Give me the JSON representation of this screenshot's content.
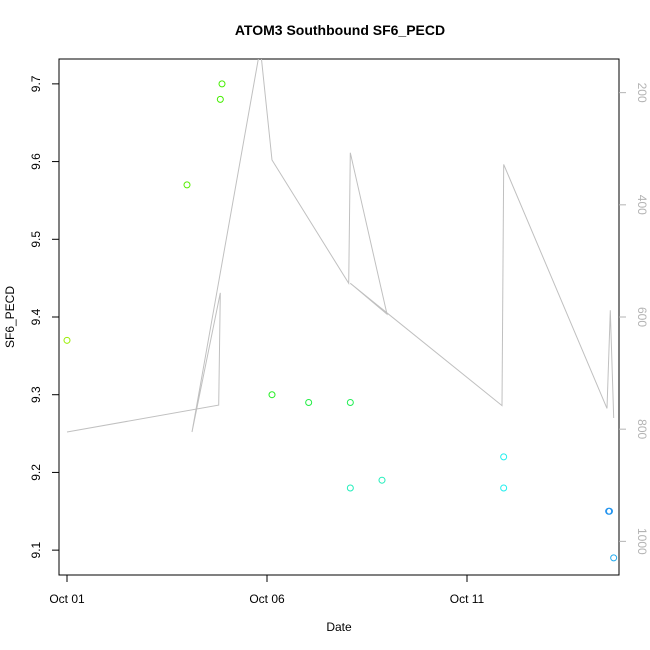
{
  "chart_data": {
    "type": "scatter",
    "title": "ATOM3 Southbound SF6_PECD",
    "xlabel": "Date",
    "ylabel": "SF6_PECD",
    "xlim": [
      "2016-09-30T19:12",
      "2016-10-14T19:12"
    ],
    "ylim": [
      9.068,
      9.732
    ],
    "x_ticks": [
      {
        "date": "2016-10-01",
        "label": "Oct 01"
      },
      {
        "date": "2016-10-06",
        "label": "Oct 06"
      },
      {
        "date": "2016-10-11",
        "label": "Oct 11"
      }
    ],
    "y_ticks": [
      9.1,
      9.2,
      9.3,
      9.4,
      9.5,
      9.6,
      9.7
    ],
    "y_tick_labels": [
      "9.1",
      "9.2",
      "9.3",
      "9.4",
      "9.5",
      "9.6",
      "9.7"
    ],
    "right_axis": {
      "reversed": true,
      "lim": [
        140,
        1060
      ],
      "ticks": [
        200,
        400,
        600,
        800,
        1000
      ],
      "tick_labels": [
        "200",
        "400",
        "600",
        "800",
        "1000"
      ],
      "color": "#b3b3b3"
    },
    "points": [
      {
        "x": "2016-10-01T00:00",
        "y": 9.37,
        "color": "#99ee00"
      },
      {
        "x": "2016-10-04T00:00",
        "y": 9.57,
        "color": "#55ee00"
      },
      {
        "x": "2016-10-04T20:00",
        "y": 9.68,
        "color": "#44ee00"
      },
      {
        "x": "2016-10-04T21:00",
        "y": 9.7,
        "color": "#44ee00"
      },
      {
        "x": "2016-10-06T03:00",
        "y": 9.3,
        "color": "#22ee22"
      },
      {
        "x": "2016-10-07T01:00",
        "y": 9.29,
        "color": "#22ee44"
      },
      {
        "x": "2016-10-08T02:00",
        "y": 9.29,
        "color": "#22ee55"
      },
      {
        "x": "2016-10-08T02:00",
        "y": 9.18,
        "color": "#22eebb"
      },
      {
        "x": "2016-10-08T21:00",
        "y": 9.19,
        "color": "#22eebb"
      },
      {
        "x": "2016-10-11T22:00",
        "y": 9.22,
        "color": "#22eeee"
      },
      {
        "x": "2016-10-11T22:00",
        "y": 9.18,
        "color": "#22eeee"
      },
      {
        "x": "2016-10-14T13:00",
        "y": 9.15,
        "color": "#2288ee"
      },
      {
        "x": "2016-10-14T13:30",
        "y": 9.15,
        "color": "#2299ee"
      },
      {
        "x": "2016-10-14T16:00",
        "y": 9.09,
        "color": "#22aaee"
      }
    ],
    "line_series": {
      "axis": "right",
      "color": "#c0c0c0",
      "points": [
        {
          "x": "2016-10-01T00:00",
          "y": 805
        },
        {
          "x": "2016-10-04T19:00",
          "y": 757
        },
        {
          "x": "2016-10-04T20:00",
          "y": 557
        },
        {
          "x": "2016-10-04T03:00",
          "y": 805
        },
        {
          "x": "2016-10-05T20:00",
          "y": 120
        },
        {
          "x": "2016-10-06T03:00",
          "y": 320
        },
        {
          "x": "2016-10-08T01:00",
          "y": 540
        },
        {
          "x": "2016-10-08T02:00",
          "y": 307
        },
        {
          "x": "2016-10-09T00:00",
          "y": 595
        },
        {
          "x": "2016-10-08T02:00",
          "y": 540
        },
        {
          "x": "2016-10-11T21:00",
          "y": 758
        },
        {
          "x": "2016-10-11T22:00",
          "y": 328
        },
        {
          "x": "2016-10-14T12:00",
          "y": 763
        },
        {
          "x": "2016-10-14T14:00",
          "y": 588
        },
        {
          "x": "2016-10-14T16:00",
          "y": 780
        }
      ]
    },
    "grid": false,
    "legend": "none"
  }
}
